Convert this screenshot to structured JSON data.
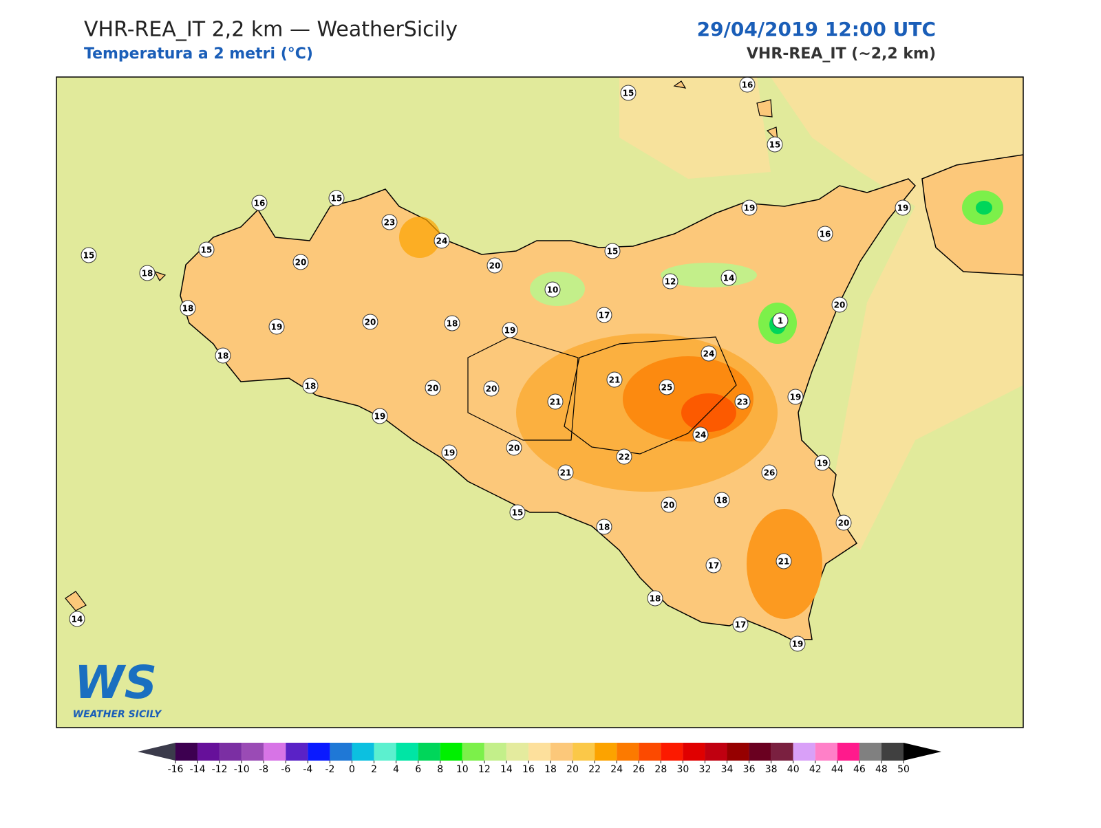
{
  "header": {
    "title": "VHR-REA_IT 2,2 km — WeatherSicily",
    "subtitle": "Temperatura a 2 metri (°C)",
    "valid_time": "29/04/2019 12:00 UTC",
    "model": "VHR-REA_IT (~2,2 km)"
  },
  "map": {
    "stations": [
      15,
      16,
      15,
      16,
      15,
      23,
      24,
      15,
      15,
      18,
      20,
      20,
      15,
      19,
      19,
      16,
      12,
      14,
      10,
      18,
      20,
      19,
      20,
      18,
      19,
      17,
      1,
      18,
      24,
      18,
      21,
      25,
      20,
      20,
      21,
      23,
      19,
      19,
      24,
      22,
      19,
      20,
      19,
      21,
      26,
      18,
      20,
      15,
      18,
      20,
      21,
      17,
      18,
      14,
      17,
      19
    ]
  },
  "colorbar": {
    "ticks": [
      -16,
      -14,
      -12,
      -10,
      -8,
      -6,
      -4,
      -2,
      0,
      2,
      4,
      6,
      8,
      10,
      12,
      14,
      16,
      18,
      20,
      22,
      24,
      26,
      28,
      30,
      32,
      34,
      36,
      38,
      40,
      42,
      44,
      46,
      48,
      50
    ],
    "colors": [
      "#3d0050",
      "#66109a",
      "#7b2fa3",
      "#9a4bb5",
      "#d774e6",
      "#5a22c6",
      "#0a1aff",
      "#1f78d6",
      "#0cc0e0",
      "#5cf0cf",
      "#00e5a5",
      "#00d65a",
      "#00f000",
      "#7cf04a",
      "#c3ef8a",
      "#e4eb9e",
      "#fde09c",
      "#fcc87a",
      "#fbc848",
      "#fca300",
      "#fc7a00",
      "#fc4a00",
      "#fc1a00",
      "#e00000",
      "#c00010",
      "#960000",
      "#6a0020",
      "#7a2040",
      "#d9a0f8",
      "#ff80c8",
      "#ff1a8c",
      "#808080",
      "#404040"
    ],
    "under_color": "#3b3b4b",
    "over_color": "#000000"
  },
  "logo": {
    "initials": "WS",
    "name": "WEATHER SICILY"
  }
}
